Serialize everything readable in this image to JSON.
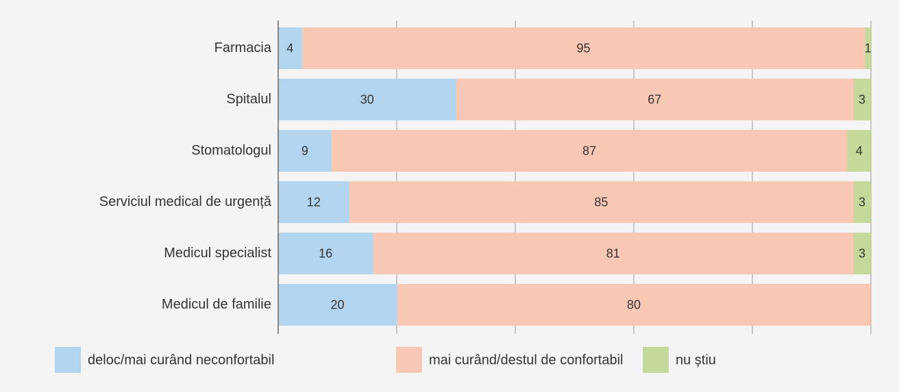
{
  "chart_data": {
    "type": "stacked-barh",
    "categories": [
      "Farmacia",
      "Spitalul",
      "Stomatologul",
      "Serviciul medical de urgență",
      "Medicul specialist",
      "Medicul de familie"
    ],
    "series": [
      {
        "name": "deloc/mai curând neconfortabil",
        "color": "#b3d4ee",
        "values": [
          4,
          30,
          9,
          12,
          16,
          20
        ]
      },
      {
        "name": "mai curând/destul de confortabil",
        "color": "#f8c8b4",
        "values": [
          95,
          67,
          87,
          85,
          81,
          80
        ]
      },
      {
        "name": "nu știu",
        "color": "#c5da9a",
        "values": [
          1,
          3,
          4,
          3,
          3,
          null
        ]
      }
    ],
    "xlim": [
      0,
      100
    ],
    "xticks": [
      0,
      20,
      40,
      60,
      80,
      100
    ],
    "grid": true,
    "legend": "bottom"
  }
}
